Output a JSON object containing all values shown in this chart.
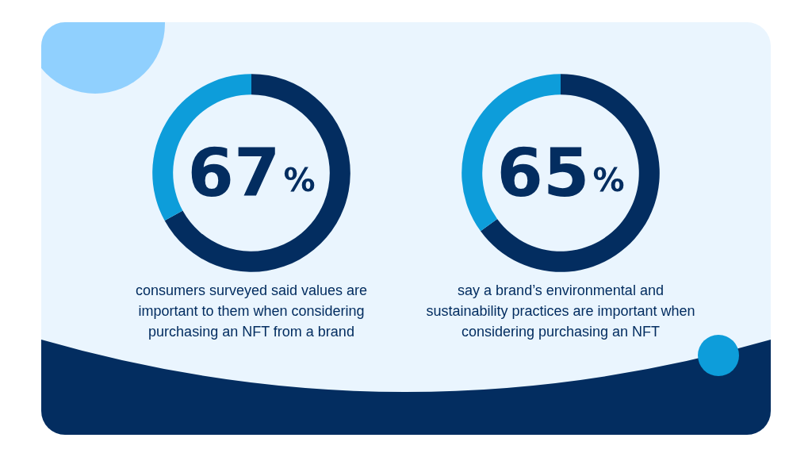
{
  "chart_data": [
    {
      "type": "donut",
      "categories": [
        null,
        null
      ],
      "values": [
        67,
        33
      ],
      "colors": [
        "#032d60",
        "#0d9dda"
      ],
      "title": "67%",
      "annotations": [
        "consumers surveyed said values are important to them when considering purchasing an NFT from a brand"
      ]
    },
    {
      "type": "donut",
      "categories": [
        null,
        null
      ],
      "values": [
        65,
        35
      ],
      "colors": [
        "#032d60",
        "#0d9dda"
      ],
      "title": "65%",
      "annotations": [
        "say a brand’s environmental and sustainability practices are important when considering purchasing an NFT"
      ]
    }
  ]
}
